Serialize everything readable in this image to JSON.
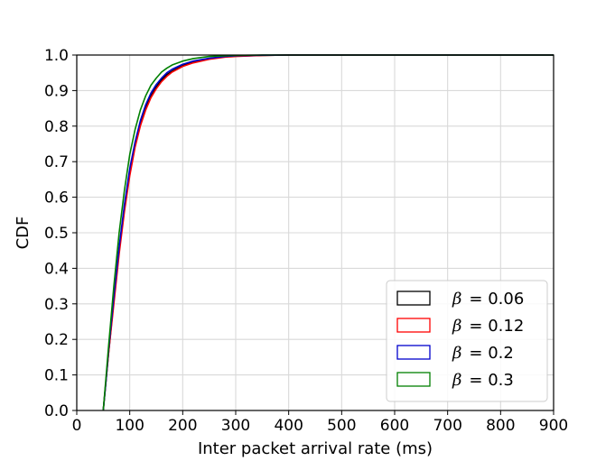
{
  "chart_data": {
    "type": "line",
    "title": "",
    "xlabel": "Inter packet arrival rate (ms)",
    "ylabel": "CDF",
    "xlim": [
      0,
      900
    ],
    "ylim": [
      0.0,
      1.0
    ],
    "xticks": [
      0,
      100,
      200,
      300,
      400,
      500,
      600,
      700,
      800,
      900
    ],
    "yticks": [
      0.0,
      0.1,
      0.2,
      0.3,
      0.4,
      0.5,
      0.6,
      0.7,
      0.8,
      0.9,
      1.0
    ],
    "xtick_labels": [
      "0",
      "100",
      "200",
      "300",
      "400",
      "500",
      "600",
      "700",
      "800",
      "900"
    ],
    "ytick_labels": [
      "0.0",
      "0.1",
      "0.2",
      "0.3",
      "0.4",
      "0.5",
      "0.6",
      "0.7",
      "0.8",
      "0.9",
      "1.0"
    ],
    "grid": true,
    "legend_position": "lower-right",
    "series": [
      {
        "name": "β = 0.06",
        "legend_symbol": "β",
        "legend_value": "= 0.06",
        "color": "#000000",
        "x": [
          50,
          55,
          60,
          70,
          80,
          90,
          100,
          110,
          120,
          130,
          140,
          150,
          160,
          170,
          180,
          200,
          220,
          250,
          280,
          300,
          350,
          400,
          500,
          900
        ],
        "y": [
          0.0,
          0.08,
          0.16,
          0.31,
          0.45,
          0.57,
          0.67,
          0.745,
          0.805,
          0.85,
          0.885,
          0.91,
          0.93,
          0.945,
          0.955,
          0.97,
          0.98,
          0.99,
          0.995,
          0.997,
          0.999,
          1.0,
          1.0,
          1.0
        ]
      },
      {
        "name": "β = 0.12",
        "legend_symbol": "β",
        "legend_value": "= 0.12",
        "color": "#ff0000",
        "x": [
          50,
          55,
          60,
          70,
          80,
          90,
          100,
          110,
          120,
          130,
          140,
          150,
          160,
          170,
          180,
          200,
          220,
          250,
          280,
          300,
          350,
          400,
          500,
          900
        ],
        "y": [
          0.0,
          0.08,
          0.16,
          0.3,
          0.44,
          0.56,
          0.66,
          0.74,
          0.8,
          0.845,
          0.88,
          0.905,
          0.925,
          0.94,
          0.952,
          0.968,
          0.978,
          0.988,
          0.994,
          0.996,
          0.999,
          1.0,
          1.0,
          1.0
        ]
      },
      {
        "name": "β = 0.2",
        "legend_symbol": "β",
        "legend_value": "= 0.2",
        "color": "#0000cc",
        "x": [
          50,
          55,
          60,
          70,
          80,
          90,
          100,
          110,
          120,
          130,
          140,
          150,
          160,
          170,
          180,
          200,
          220,
          250,
          280,
          300,
          350,
          400,
          500,
          900
        ],
        "y": [
          0.0,
          0.08,
          0.17,
          0.32,
          0.46,
          0.58,
          0.68,
          0.755,
          0.815,
          0.86,
          0.893,
          0.917,
          0.935,
          0.95,
          0.96,
          0.974,
          0.983,
          0.991,
          0.996,
          0.998,
          0.9995,
          1.0,
          1.0,
          1.0
        ]
      },
      {
        "name": "β = 0.3",
        "legend_symbol": "β",
        "legend_value": "= 0.3",
        "color": "#008000",
        "x": [
          50,
          55,
          60,
          70,
          80,
          90,
          100,
          110,
          120,
          130,
          140,
          150,
          160,
          170,
          180,
          200,
          220,
          250,
          280,
          300,
          350,
          400,
          500,
          900
        ],
        "y": [
          0.0,
          0.09,
          0.18,
          0.35,
          0.5,
          0.62,
          0.72,
          0.79,
          0.845,
          0.885,
          0.915,
          0.935,
          0.952,
          0.963,
          0.972,
          0.983,
          0.99,
          0.996,
          0.998,
          0.999,
          1.0,
          1.0,
          1.0,
          1.0
        ]
      }
    ]
  }
}
